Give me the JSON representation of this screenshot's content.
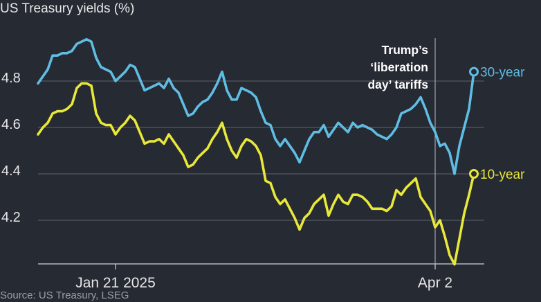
{
  "chart_data": {
    "type": "line",
    "title": "US Treasury yields (%)",
    "source": "Source: US Treasury, LSEG",
    "ylabel": "",
    "xlabel": "",
    "ylim": [
      4.0,
      5.0
    ],
    "yticks": [
      4.2,
      4.4,
      4.6,
      4.8
    ],
    "ytick_labels": [
      "4.2",
      "4.4",
      "4.6",
      "4.8"
    ],
    "grid": true,
    "x_ticks": [
      {
        "label": "Jan 21 2025",
        "index": 16
      },
      {
        "label": "Apr 2",
        "index": 82
      }
    ],
    "annotation": {
      "lines": [
        "Trump’s",
        "‘liberation",
        "day’ tariffs"
      ],
      "index": 82
    },
    "series": [
      {
        "name": "30-year",
        "color": "#5fbde3",
        "values": [
          4.79,
          4.82,
          4.85,
          4.91,
          4.91,
          4.92,
          4.92,
          4.93,
          4.96,
          4.97,
          4.98,
          4.97,
          4.9,
          4.86,
          4.85,
          4.84,
          4.8,
          4.82,
          4.84,
          4.87,
          4.86,
          4.81,
          4.76,
          4.77,
          4.78,
          4.79,
          4.77,
          4.81,
          4.77,
          4.75,
          4.7,
          4.65,
          4.66,
          4.69,
          4.71,
          4.72,
          4.75,
          4.79,
          4.84,
          4.76,
          4.72,
          4.72,
          4.77,
          4.76,
          4.75,
          4.73,
          4.67,
          4.62,
          4.61,
          4.55,
          4.52,
          4.55,
          4.52,
          4.49,
          4.45,
          4.5,
          4.55,
          4.58,
          4.58,
          4.61,
          4.56,
          4.59,
          4.62,
          4.6,
          4.58,
          4.62,
          4.6,
          4.61,
          4.6,
          4.59,
          4.57,
          4.56,
          4.55,
          4.57,
          4.6,
          4.66,
          4.67,
          4.68,
          4.7,
          4.73,
          4.68,
          4.62,
          4.58,
          4.52,
          4.53,
          4.49,
          4.4,
          4.52,
          4.6,
          4.68,
          4.84
        ]
      },
      {
        "name": "10-year",
        "color": "#e8e83a",
        "values": [
          4.57,
          4.6,
          4.62,
          4.66,
          4.67,
          4.67,
          4.68,
          4.7,
          4.77,
          4.79,
          4.79,
          4.78,
          4.66,
          4.62,
          4.61,
          4.61,
          4.57,
          4.6,
          4.62,
          4.65,
          4.63,
          4.58,
          4.53,
          4.54,
          4.54,
          4.55,
          4.53,
          4.57,
          4.54,
          4.51,
          4.48,
          4.43,
          4.44,
          4.47,
          4.49,
          4.51,
          4.55,
          4.58,
          4.62,
          4.55,
          4.5,
          4.47,
          4.52,
          4.55,
          4.54,
          4.52,
          4.48,
          4.37,
          4.36,
          4.3,
          4.27,
          4.29,
          4.25,
          4.21,
          4.16,
          4.21,
          4.23,
          4.27,
          4.29,
          4.31,
          4.22,
          4.27,
          4.31,
          4.28,
          4.27,
          4.31,
          4.31,
          4.3,
          4.28,
          4.25,
          4.25,
          4.25,
          4.24,
          4.26,
          4.33,
          4.31,
          4.34,
          4.36,
          4.38,
          4.3,
          4.27,
          4.24,
          4.17,
          4.2,
          4.13,
          4.05,
          4.01,
          4.12,
          4.23,
          4.31,
          4.4
        ]
      }
    ]
  }
}
